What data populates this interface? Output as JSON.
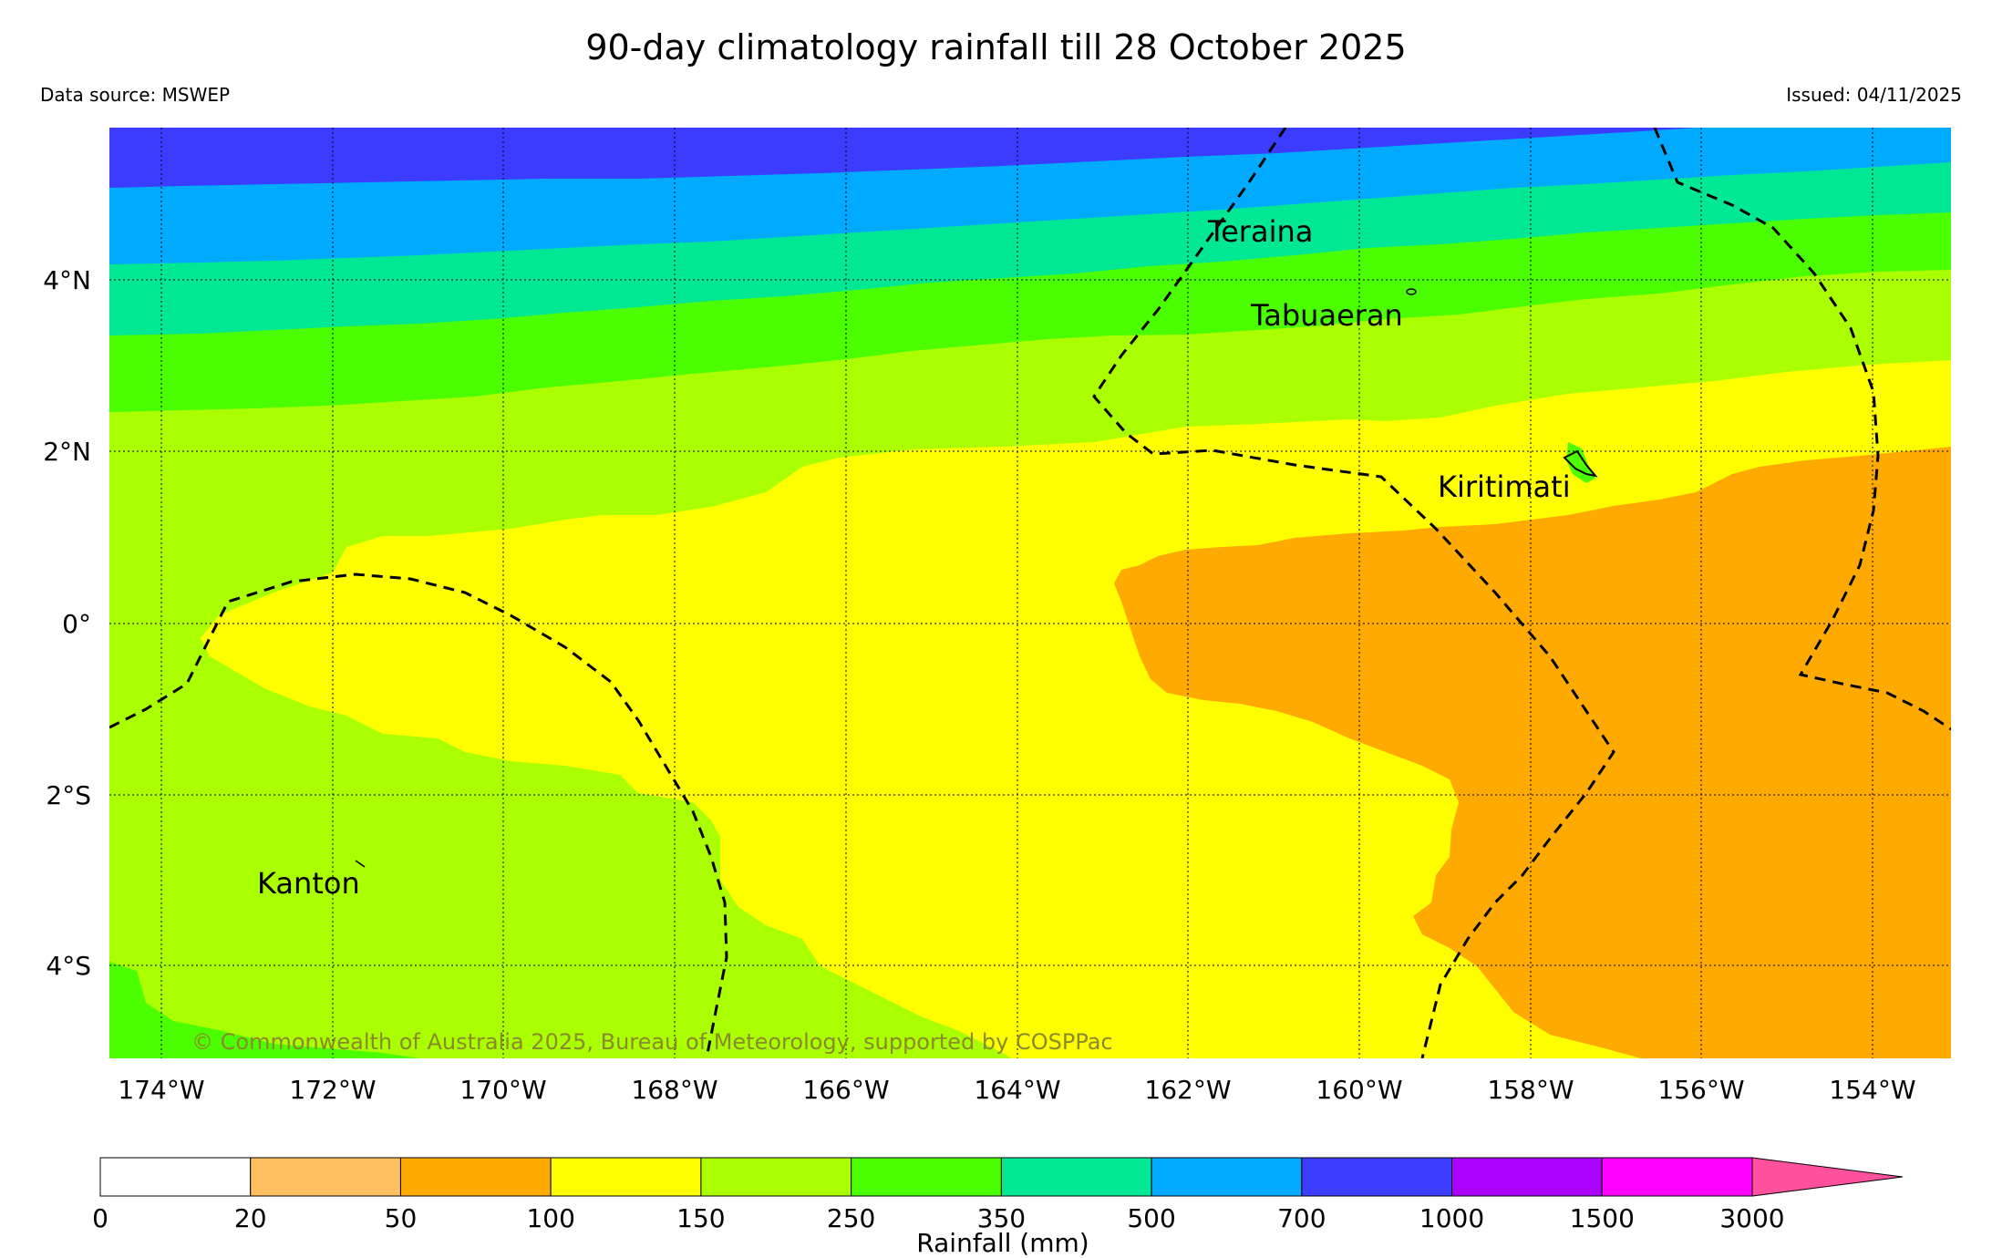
{
  "header": {
    "title": "90-day climatology rainfall till 28 October 2025",
    "source": "Data source: MSWEP",
    "issued": "Issued: 04/11/2025"
  },
  "map": {
    "lat_labels": [
      "4°N",
      "2°N",
      "0°",
      "2°S",
      "4°S"
    ],
    "lon_labels": [
      "174°W",
      "172°W",
      "170°W",
      "168°W",
      "166°W",
      "164°W",
      "162°W",
      "160°W",
      "158°W",
      "156°W",
      "154°W"
    ],
    "places": {
      "teraina": "Teraina",
      "tabuaeran": "Tabuaeran",
      "kiritimati": "Kiritimati",
      "kanton": "Kanton"
    },
    "copyright": "© Commonwealth of Australia 2025, Bureau of Meteorology, supported by COSPPac"
  },
  "legend": {
    "title": "Rainfall (mm)",
    "ticks": [
      "0",
      "20",
      "50",
      "100",
      "150",
      "250",
      "350",
      "500",
      "700",
      "1000",
      "1500",
      "3000"
    ],
    "colors": [
      "#ffffff",
      "#ffbf5f",
      "#ffaa00",
      "#ffff00",
      "#aaff00",
      "#4cff00",
      "#00e894",
      "#00aaff",
      "#3c3cff",
      "#aa00ff",
      "#ff00ff",
      "#ff50a0"
    ]
  }
}
